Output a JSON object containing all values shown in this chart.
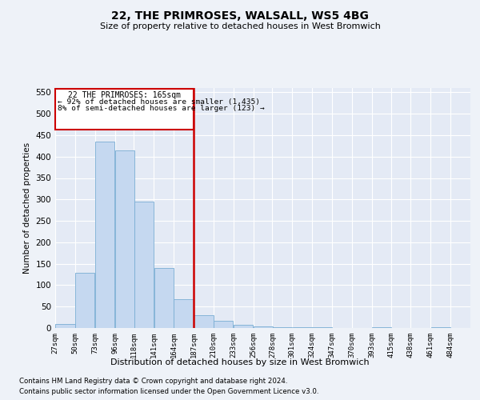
{
  "title": "22, THE PRIMROSES, WALSALL, WS5 4BG",
  "subtitle": "Size of property relative to detached houses in West Bromwich",
  "xlabel": "Distribution of detached houses by size in West Bromwich",
  "ylabel": "Number of detached properties",
  "footnote1": "Contains HM Land Registry data © Crown copyright and database right 2024.",
  "footnote2": "Contains public sector information licensed under the Open Government Licence v3.0.",
  "annotation_line1": "22 THE PRIMROSES: 165sqm",
  "annotation_line2": "← 92% of detached houses are smaller (1,435)",
  "annotation_line3": "8% of semi-detached houses are larger (123) →",
  "bar_color": "#c5d8f0",
  "bar_edge_color": "#7aadd4",
  "highlight_line_color": "#cc0000",
  "annotation_box_color": "#cc0000",
  "categories": [
    "27sqm",
    "50sqm",
    "73sqm",
    "96sqm",
    "118sqm",
    "141sqm",
    "164sqm",
    "187sqm",
    "210sqm",
    "233sqm",
    "256sqm",
    "278sqm",
    "301sqm",
    "324sqm",
    "347sqm",
    "370sqm",
    "393sqm",
    "415sqm",
    "438sqm",
    "461sqm",
    "484sqm"
  ],
  "values": [
    10,
    128,
    435,
    415,
    295,
    140,
    67,
    30,
    17,
    8,
    4,
    2,
    1,
    1,
    0,
    0,
    1,
    0,
    0,
    1,
    0
  ],
  "bin_width": 23,
  "bin_starts": [
    27,
    50,
    73,
    96,
    118,
    141,
    164,
    187,
    210,
    233,
    256,
    278,
    301,
    324,
    347,
    370,
    393,
    415,
    438,
    461,
    484
  ],
  "vline_x": 187,
  "ylim": [
    0,
    560
  ],
  "yticks": [
    0,
    50,
    100,
    150,
    200,
    250,
    300,
    350,
    400,
    450,
    500,
    550
  ],
  "background_color": "#eef2f8",
  "plot_bg_color": "#e4eaf5"
}
